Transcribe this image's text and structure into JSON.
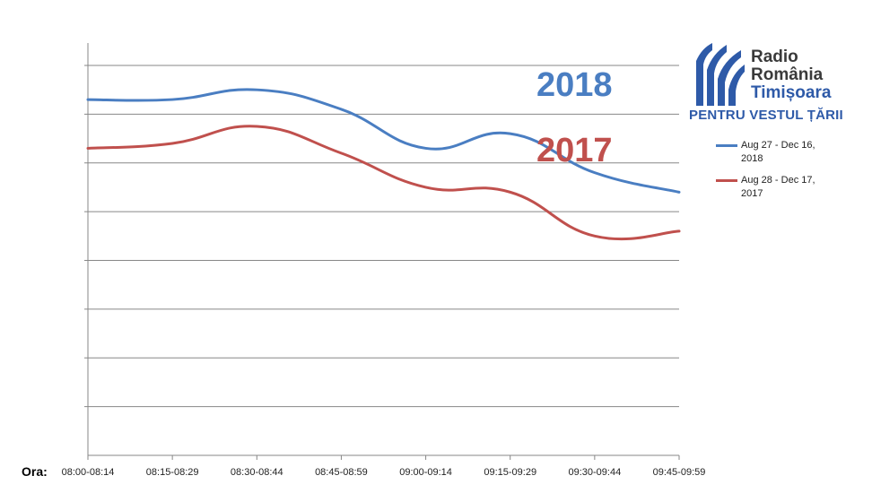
{
  "chart_data": {
    "type": "line",
    "categories": [
      "08:00-08:14",
      "08:15-08:29",
      "08:30-08:44",
      "08:45-08:59",
      "09:00-09:14",
      "09:15-09:29",
      "09:30-09:44",
      "09:45-09:59"
    ],
    "series": [
      {
        "name": "Aug 27 - Dec 16, 2018",
        "color": "#4a7ec2",
        "values": [
          7.3,
          7.3,
          7.5,
          7.1,
          6.3,
          6.6,
          5.8,
          5.4
        ]
      },
      {
        "name": "Aug 28 - Dec 17, 2017",
        "color": "#c0504d",
        "values": [
          6.3,
          6.4,
          6.75,
          6.2,
          5.5,
          5.4,
          4.5,
          4.6
        ]
      }
    ],
    "ylim": [
      0,
      8
    ],
    "y_gridlines": [
      1,
      2,
      3,
      4,
      5,
      6,
      7,
      8
    ],
    "y_tick_labels_visible": false,
    "grid": true,
    "legend_position": "right",
    "xlabel": "Ora:",
    "annotations": [
      {
        "text": "2018",
        "color": "#4a7ec2"
      },
      {
        "text": "2017",
        "color": "#c0504d"
      }
    ]
  },
  "logo": {
    "line1": "Radio",
    "line2": "România",
    "line3": "Timișoara",
    "tagline": "PENTRU VESTUL ȚĂRII",
    "colors": {
      "blue": "#2e5aa8",
      "text": "#3a3a3a"
    }
  },
  "legend": {
    "items": [
      {
        "label": "Aug 27 - Dec 16, 2018",
        "color": "#4a7ec2"
      },
      {
        "label": "Aug 28 - Dec 17, 2017",
        "color": "#c0504d"
      }
    ]
  }
}
